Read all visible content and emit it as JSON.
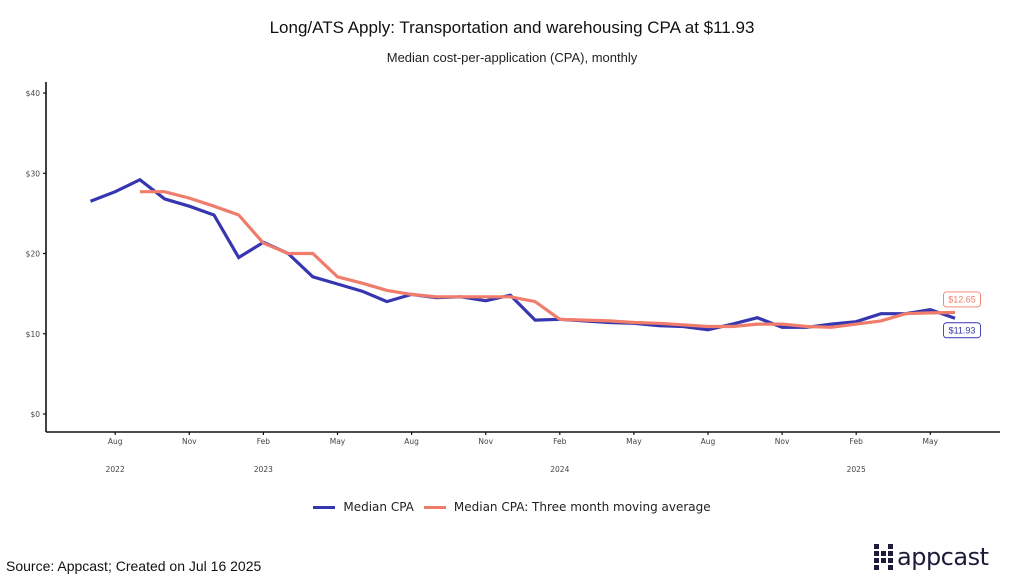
{
  "chart_data": {
    "type": "line",
    "title": "Long/ATS Apply: Transportation and warehousing CPA at $11.93",
    "subtitle": "Median cost-per-application (CPA), monthly",
    "xlabel": "",
    "ylabel": "",
    "ylim": [
      0,
      40
    ],
    "yticks": [
      0,
      10,
      20,
      30,
      40
    ],
    "ytick_labels": [
      "$0",
      "$10",
      "$20",
      "$30",
      "$40"
    ],
    "x_month_start": "2022-07",
    "xticks": [
      {
        "month_index": 1,
        "label": "Aug"
      },
      {
        "month_index": 4,
        "label": "Nov"
      },
      {
        "month_index": 7,
        "label": "Feb"
      },
      {
        "month_index": 10,
        "label": "May"
      },
      {
        "month_index": 13,
        "label": "Aug"
      },
      {
        "month_index": 16,
        "label": "Nov"
      },
      {
        "month_index": 19,
        "label": "Feb"
      },
      {
        "month_index": 22,
        "label": "May"
      },
      {
        "month_index": 25,
        "label": "Aug"
      },
      {
        "month_index": 28,
        "label": "Nov"
      },
      {
        "month_index": 31,
        "label": "Feb"
      },
      {
        "month_index": 34,
        "label": "May"
      }
    ],
    "year_labels": [
      {
        "month_index": 1,
        "label": "2022"
      },
      {
        "month_index": 7,
        "label": "2023"
      },
      {
        "month_index": 19,
        "label": "2024"
      },
      {
        "month_index": 31,
        "label": "2025"
      }
    ],
    "grid": false,
    "legend_position": "bottom",
    "series": [
      {
        "name": "Median CPA",
        "color": "#3636b0",
        "start_index": 0,
        "values": [
          26.5,
          27.7,
          29.2,
          26.8,
          25.9,
          24.8,
          19.5,
          21.4,
          20.0,
          17.1,
          16.2,
          15.3,
          14.0,
          14.9,
          14.5,
          14.6,
          14.1,
          14.8,
          11.7,
          11.8,
          11.6,
          11.4,
          11.3,
          11.0,
          10.9,
          10.5,
          11.2,
          12.0,
          10.8,
          10.8,
          11.2,
          11.5,
          12.5,
          12.5,
          13.0,
          11.93
        ],
        "end_label": "$11.93"
      },
      {
        "name": "Median CPA: Three month moving average",
        "color": "#f07c6c",
        "start_index": 2,
        "values": [
          27.7,
          27.7,
          26.9,
          25.9,
          24.8,
          21.3,
          20.0,
          20.0,
          17.1,
          16.3,
          15.4,
          14.9,
          14.6,
          14.6,
          14.6,
          14.6,
          14.0,
          11.8,
          11.7,
          11.6,
          11.4,
          11.3,
          11.1,
          10.9,
          10.9,
          11.2,
          11.2,
          10.9,
          10.8,
          11.2,
          11.6,
          12.5,
          12.6,
          12.65
        ],
        "end_label": "$12.65"
      }
    ]
  },
  "footer": {
    "source": "Source: Appcast; Created on Jul 16 2025",
    "logo_text": "appcast"
  }
}
